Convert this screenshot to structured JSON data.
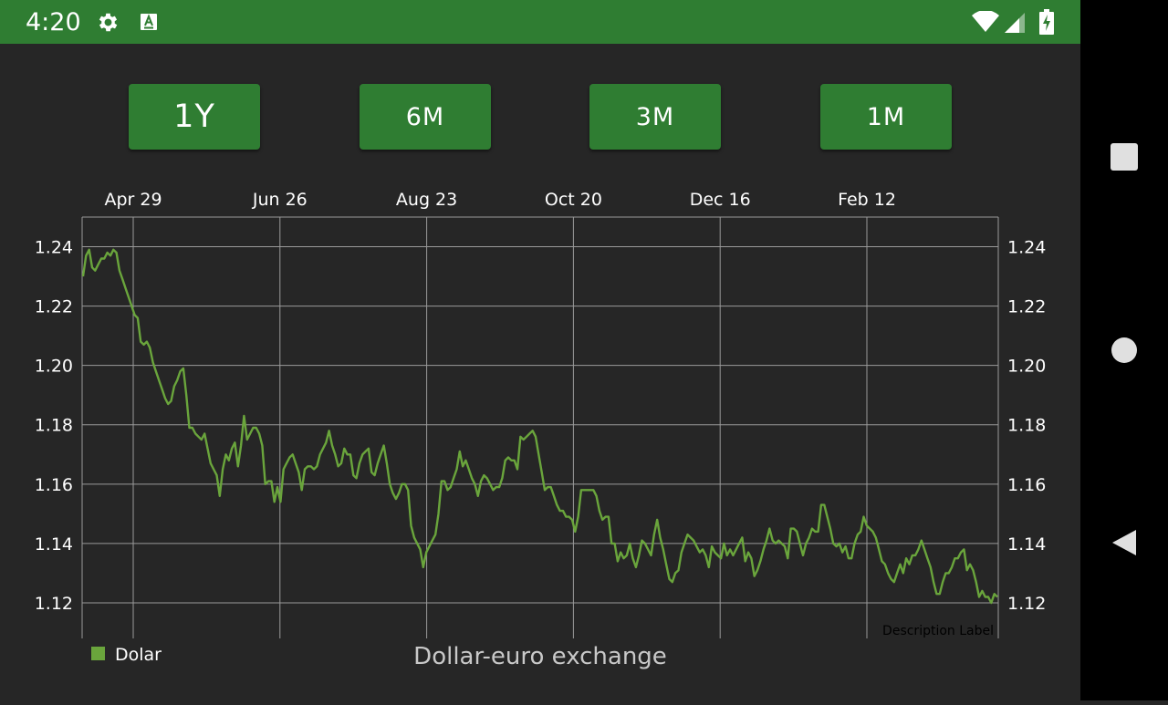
{
  "status_bar": {
    "time": "4:20",
    "icons_left": [
      "settings-gear-icon",
      "app-store-icon"
    ],
    "icons_right": [
      "wifi-icon",
      "signal-icon",
      "battery-charging-icon"
    ],
    "color": "#2f7d32"
  },
  "range_buttons": [
    {
      "label": "1Y"
    },
    {
      "label": "6M"
    },
    {
      "label": "3M"
    },
    {
      "label": "1M"
    }
  ],
  "chart_data": {
    "type": "line",
    "title": "Dollar-euro exchange",
    "description": "Description Label",
    "legend_position": "bottom-left",
    "grid": true,
    "line_color": "#6aa53c",
    "x_ticks": [
      "Apr 29",
      "Jun 26",
      "Aug 23",
      "Oct 20",
      "Dec 16",
      "Feb 12"
    ],
    "ylim": [
      1.108,
      1.25
    ],
    "y_ticks": [
      1.12,
      1.14,
      1.16,
      1.18,
      1.2,
      1.22,
      1.24
    ],
    "y_tick_labels": [
      "1.12",
      "1.14",
      "1.16",
      "1.18",
      "1.20",
      "1.22",
      "1.24"
    ],
    "series": [
      {
        "name": "Dolar",
        "values": [
          1.23,
          1.237,
          1.239,
          1.233,
          1.232,
          1.234,
          1.236,
          1.236,
          1.238,
          1.237,
          1.239,
          1.238,
          1.232,
          1.229,
          1.226,
          1.223,
          1.22,
          1.217,
          1.216,
          1.208,
          1.207,
          1.208,
          1.206,
          1.201,
          1.198,
          1.195,
          1.192,
          1.189,
          1.187,
          1.188,
          1.193,
          1.195,
          1.198,
          1.199,
          1.19,
          1.179,
          1.179,
          1.177,
          1.176,
          1.175,
          1.177,
          1.172,
          1.167,
          1.165,
          1.163,
          1.156,
          1.165,
          1.17,
          1.168,
          1.172,
          1.174,
          1.166,
          1.173,
          1.183,
          1.175,
          1.177,
          1.179,
          1.179,
          1.177,
          1.173,
          1.16,
          1.161,
          1.161,
          1.154,
          1.159,
          1.154,
          1.165,
          1.167,
          1.169,
          1.17,
          1.167,
          1.164,
          1.158,
          1.165,
          1.166,
          1.166,
          1.165,
          1.166,
          1.17,
          1.172,
          1.174,
          1.178,
          1.173,
          1.17,
          1.166,
          1.167,
          1.172,
          1.17,
          1.17,
          1.163,
          1.162,
          1.167,
          1.17,
          1.171,
          1.172,
          1.164,
          1.163,
          1.167,
          1.17,
          1.173,
          1.167,
          1.16,
          1.157,
          1.155,
          1.157,
          1.16,
          1.16,
          1.158,
          1.146,
          1.142,
          1.14,
          1.138,
          1.132,
          1.137,
          1.139,
          1.141,
          1.143,
          1.15,
          1.161,
          1.161,
          1.158,
          1.159,
          1.162,
          1.165,
          1.171,
          1.166,
          1.168,
          1.165,
          1.162,
          1.16,
          1.156,
          1.161,
          1.163,
          1.162,
          1.16,
          1.158,
          1.159,
          1.159,
          1.162,
          1.168,
          1.169,
          1.168,
          1.168,
          1.165,
          1.176,
          1.175,
          1.176,
          1.177,
          1.178,
          1.176,
          1.17,
          1.164,
          1.158,
          1.159,
          1.159,
          1.156,
          1.153,
          1.151,
          1.151,
          1.149,
          1.149,
          1.148,
          1.144,
          1.149,
          1.158,
          1.158,
          1.158,
          1.158,
          1.158,
          1.156,
          1.151,
          1.148,
          1.149,
          1.149,
          1.14,
          1.14,
          1.134,
          1.137,
          1.135,
          1.136,
          1.14,
          1.135,
          1.132,
          1.136,
          1.141,
          1.14,
          1.138,
          1.136,
          1.143,
          1.148,
          1.142,
          1.138,
          1.133,
          1.128,
          1.127,
          1.13,
          1.131,
          1.137,
          1.14,
          1.143,
          1.142,
          1.141,
          1.139,
          1.137,
          1.138,
          1.136,
          1.132,
          1.139,
          1.137,
          1.136,
          1.135,
          1.14,
          1.136,
          1.138,
          1.136,
          1.138,
          1.14,
          1.142,
          1.134,
          1.137,
          1.135,
          1.129,
          1.131,
          1.134,
          1.138,
          1.141,
          1.145,
          1.141,
          1.14,
          1.141,
          1.14,
          1.139,
          1.135,
          1.145,
          1.145,
          1.144,
          1.14,
          1.136,
          1.14,
          1.142,
          1.145,
          1.144,
          1.144,
          1.153,
          1.153,
          1.149,
          1.145,
          1.14,
          1.139,
          1.14,
          1.137,
          1.139,
          1.135,
          1.135,
          1.14,
          1.143,
          1.144,
          1.149,
          1.146,
          1.145,
          1.144,
          1.142,
          1.138,
          1.134,
          1.133,
          1.13,
          1.128,
          1.127,
          1.13,
          1.133,
          1.13,
          1.135,
          1.133,
          1.136,
          1.136,
          1.138,
          1.141,
          1.138,
          1.135,
          1.132,
          1.127,
          1.123,
          1.123,
          1.127,
          1.13,
          1.13,
          1.132,
          1.135,
          1.135,
          1.137,
          1.138,
          1.131,
          1.133,
          1.131,
          1.127,
          1.122,
          1.124,
          1.122,
          1.122,
          1.12,
          1.123,
          1.122
        ]
      }
    ]
  }
}
